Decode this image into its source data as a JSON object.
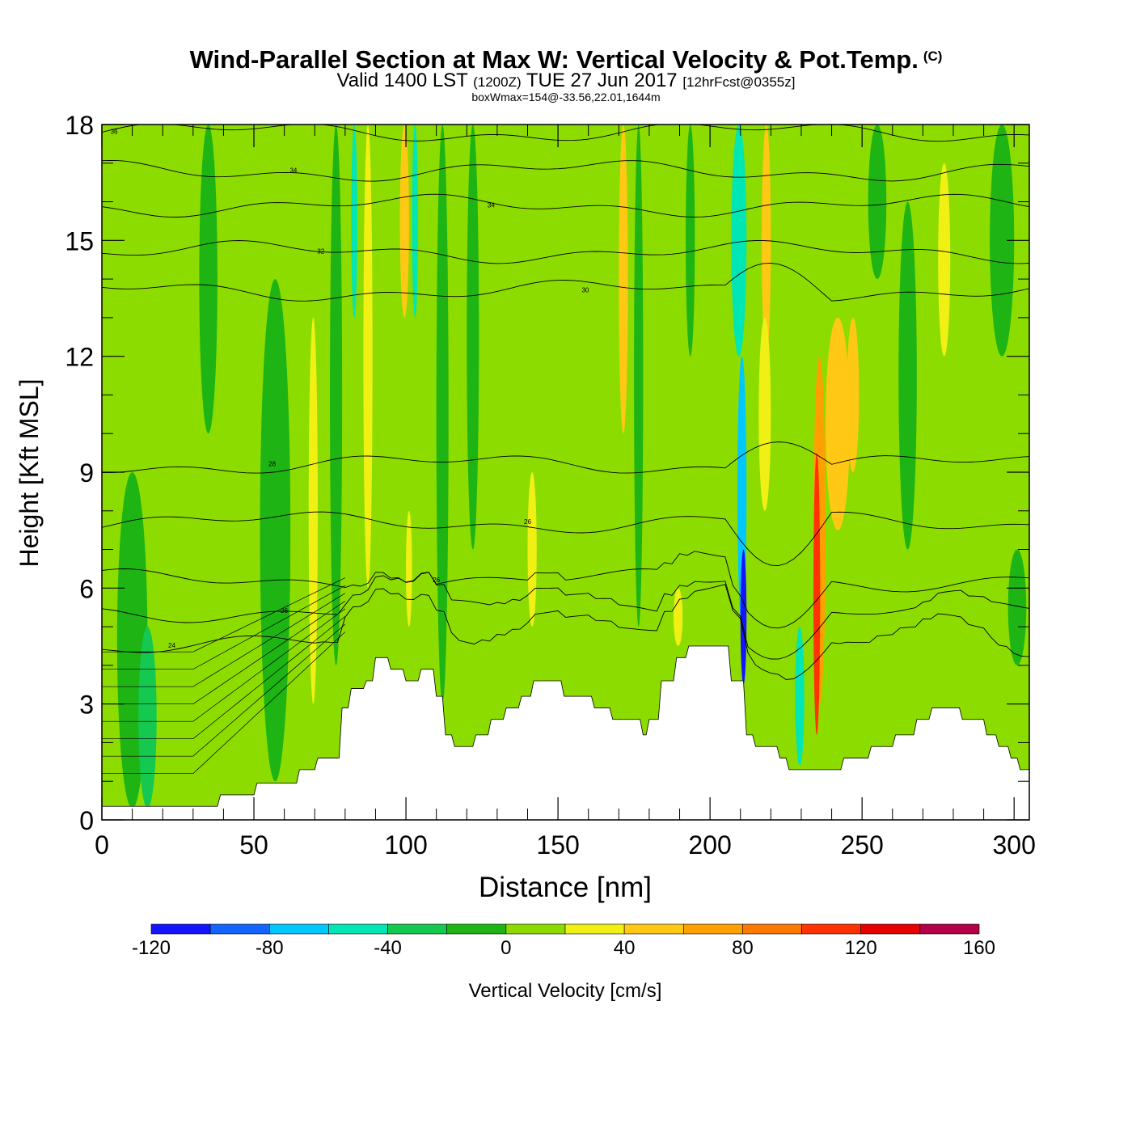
{
  "header": {
    "title": "Wind-Parallel Section at Max W: Vertical Velocity & Pot.Temp.",
    "copyright": "(C)",
    "valid_prefix": "Valid 1400 LST",
    "valid_utc": "(1200Z)",
    "valid_date": "TUE 27 Jun 2017",
    "forecast": "[12hrFcst@0355z]",
    "box_wmax": "boxWmax=154@-33.56,22.01,1644m"
  },
  "colors": {
    "bins": [
      "#1414ff",
      "#1464ff",
      "#00c8ff",
      "#00e6b4",
      "#14c850",
      "#1eb414",
      "#8cdc00",
      "#f0f014",
      "#ffc814",
      "#ffa000",
      "#ff7800",
      "#ff3200",
      "#e60000",
      "#b40046"
    ],
    "terrain": "#ffffff",
    "frame": "#000000",
    "contour": "#000000"
  },
  "chart_data": {
    "type": "heatmap",
    "title": "Wind-Parallel Section at Max W: Vertical Velocity & Pot.Temp.",
    "xlabel": "Distance [nm]",
    "ylabel": "Height [Kft MSL]",
    "xlim": [
      0,
      305
    ],
    "ylim": [
      0,
      18
    ],
    "x_ticks": [
      0,
      50,
      100,
      150,
      200,
      250,
      300
    ],
    "y_ticks": [
      0,
      3,
      6,
      9,
      12,
      15,
      18
    ],
    "colorbar": {
      "label": "Vertical Velocity [cm/s]",
      "levels": [
        -120,
        -100,
        -80,
        -60,
        -40,
        -20,
        0,
        20,
        40,
        60,
        80,
        100,
        120,
        140,
        160
      ],
      "tick_labels": [
        "-120",
        "-80",
        "-40",
        "0",
        "40",
        "80",
        "120",
        "160"
      ]
    },
    "terrain_kft": [
      [
        0,
        0.35
      ],
      [
        38,
        0.35
      ],
      [
        39,
        0.65
      ],
      [
        50,
        0.65
      ],
      [
        51,
        0.95
      ],
      [
        64,
        0.95
      ],
      [
        65,
        1.3
      ],
      [
        70,
        1.3
      ],
      [
        71,
        1.6
      ],
      [
        78,
        1.6
      ],
      [
        79,
        2.9
      ],
      [
        81,
        2.9
      ],
      [
        82,
        3.4
      ],
      [
        86,
        3.4
      ],
      [
        87,
        3.6
      ],
      [
        89,
        3.6
      ],
      [
        90,
        4.2
      ],
      [
        94,
        4.2
      ],
      [
        95,
        3.9
      ],
      [
        99,
        3.9
      ],
      [
        100,
        3.6
      ],
      [
        104,
        3.6
      ],
      [
        105,
        3.9
      ],
      [
        109,
        3.9
      ],
      [
        110,
        3.2
      ],
      [
        112,
        3.2
      ],
      [
        113,
        2.2
      ],
      [
        115,
        2.2
      ],
      [
        116,
        1.9
      ],
      [
        122,
        1.9
      ],
      [
        123,
        2.2
      ],
      [
        127,
        2.2
      ],
      [
        128,
        2.6
      ],
      [
        132,
        2.6
      ],
      [
        133,
        2.9
      ],
      [
        137,
        2.9
      ],
      [
        138,
        3.2
      ],
      [
        141,
        3.2
      ],
      [
        142,
        3.6
      ],
      [
        151,
        3.6
      ],
      [
        152,
        3.2
      ],
      [
        161,
        3.2
      ],
      [
        162,
        2.9
      ],
      [
        167,
        2.9
      ],
      [
        168,
        2.6
      ],
      [
        177,
        2.6
      ],
      [
        178,
        2.2
      ],
      [
        179,
        2.2
      ],
      [
        180,
        2.6
      ],
      [
        183,
        2.6
      ],
      [
        184,
        3.6
      ],
      [
        188,
        3.6
      ],
      [
        189,
        4.2
      ],
      [
        192,
        4.2
      ],
      [
        193,
        4.5
      ],
      [
        206,
        4.5
      ],
      [
        207,
        3.6
      ],
      [
        211,
        3.6
      ],
      [
        212,
        2.2
      ],
      [
        214,
        2.2
      ],
      [
        215,
        1.9
      ],
      [
        222,
        1.9
      ],
      [
        223,
        1.6
      ],
      [
        225,
        1.6
      ],
      [
        226,
        1.3
      ],
      [
        243,
        1.3
      ],
      [
        244,
        1.6
      ],
      [
        252,
        1.6
      ],
      [
        253,
        1.9
      ],
      [
        260,
        1.9
      ],
      [
        261,
        2.2
      ],
      [
        267,
        2.2
      ],
      [
        268,
        2.6
      ],
      [
        272,
        2.6
      ],
      [
        273,
        2.9
      ],
      [
        282,
        2.9
      ],
      [
        283,
        2.6
      ],
      [
        290,
        2.6
      ],
      [
        291,
        2.2
      ],
      [
        294,
        2.2
      ],
      [
        295,
        1.9
      ],
      [
        298,
        1.9
      ],
      [
        299,
        1.6
      ],
      [
        301,
        1.6
      ],
      [
        302,
        1.3
      ],
      [
        305,
        1.3
      ]
    ],
    "w_bands": [
      {
        "x": 5,
        "w": 10,
        "top": 9,
        "bot": 0.3,
        "v": -10
      },
      {
        "x": 12,
        "w": 6,
        "top": 5,
        "bot": 0.3,
        "v": -25
      },
      {
        "x": 32,
        "w": 6,
        "top": 18,
        "bot": 10,
        "v": -5
      },
      {
        "x": 52,
        "w": 10,
        "top": 14,
        "bot": 1,
        "v": -10
      },
      {
        "x": 68,
        "w": 3,
        "top": 13,
        "bot": 3,
        "v": 30
      },
      {
        "x": 75,
        "w": 4,
        "top": 18,
        "bot": 4,
        "v": -10
      },
      {
        "x": 82,
        "w": 2,
        "top": 18,
        "bot": 13,
        "v": -45
      },
      {
        "x": 86,
        "w": 3,
        "top": 18,
        "bot": 6,
        "v": 35
      },
      {
        "x": 98,
        "w": 3,
        "top": 18,
        "bot": 13,
        "v": 50
      },
      {
        "x": 102,
        "w": 2,
        "top": 18,
        "bot": 13,
        "v": -45
      },
      {
        "x": 100,
        "w": 2,
        "top": 8,
        "bot": 5,
        "v": 35
      },
      {
        "x": 110,
        "w": 4,
        "top": 18,
        "bot": 3,
        "v": -10
      },
      {
        "x": 140,
        "w": 3,
        "top": 9,
        "bot": 5,
        "v": 35
      },
      {
        "x": 120,
        "w": 4,
        "top": 18,
        "bot": 7,
        "v": -10
      },
      {
        "x": 170,
        "w": 3,
        "top": 18,
        "bot": 10,
        "v": 45
      },
      {
        "x": 175,
        "w": 3,
        "top": 18,
        "bot": 5,
        "v": -10
      },
      {
        "x": 192,
        "w": 3,
        "top": 18,
        "bot": 12,
        "v": -10
      },
      {
        "x": 188,
        "w": 3,
        "top": 6,
        "bot": 4.5,
        "v": 35
      },
      {
        "x": 207,
        "w": 5,
        "top": 18,
        "bot": 12,
        "v": -45
      },
      {
        "x": 209,
        "w": 3,
        "top": 12,
        "bot": 5,
        "v": -65
      },
      {
        "x": 210,
        "w": 2,
        "top": 7,
        "bot": 3.5,
        "v": -105
      },
      {
        "x": 217,
        "w": 3,
        "top": 18,
        "bot": 12,
        "v": 45
      },
      {
        "x": 216,
        "w": 4,
        "top": 13,
        "bot": 8,
        "v": 25
      },
      {
        "x": 238,
        "w": 8,
        "top": 13,
        "bot": 7.5,
        "v": 45
      },
      {
        "x": 245,
        "w": 4,
        "top": 13,
        "bot": 9,
        "v": 55
      },
      {
        "x": 234,
        "w": 4,
        "top": 12,
        "bot": 3,
        "v": 75
      },
      {
        "x": 234,
        "w": 2.2,
        "top": 9.5,
        "bot": 2.2,
        "v": 115
      },
      {
        "x": 228,
        "w": 3,
        "top": 5,
        "bot": 1.4,
        "v": -45
      },
      {
        "x": 252,
        "w": 6,
        "top": 18,
        "bot": 14,
        "v": -10
      },
      {
        "x": 262,
        "w": 6,
        "top": 16,
        "bot": 7,
        "v": -5
      },
      {
        "x": 275,
        "w": 4,
        "top": 17,
        "bot": 12,
        "v": 35
      },
      {
        "x": 292,
        "w": 8,
        "top": 18,
        "bot": 12,
        "v": -10
      },
      {
        "x": 298,
        "w": 6,
        "top": 7,
        "bot": 4,
        "v": -10
      }
    ],
    "theta_contours": [
      {
        "y": 17.8,
        "label": "36",
        "lx": 4
      },
      {
        "y": 16.8,
        "label": "34",
        "lx": 63
      },
      {
        "y": 15.9,
        "label": "34",
        "lx": 128
      },
      {
        "y": 14.7,
        "label": "32",
        "lx": 72
      },
      {
        "y": 13.7,
        "label": "30",
        "lx": 159
      },
      {
        "y": 9.2,
        "label": "28",
        "lx": 56
      },
      {
        "y": 7.7,
        "label": "26",
        "lx": 140
      },
      {
        "y": 6.2,
        "label": "26",
        "lx": 110
      },
      {
        "y": 5.4,
        "label": "26",
        "lx": 60
      },
      {
        "y": 4.5,
        "label": "24",
        "lx": 23
      }
    ]
  }
}
